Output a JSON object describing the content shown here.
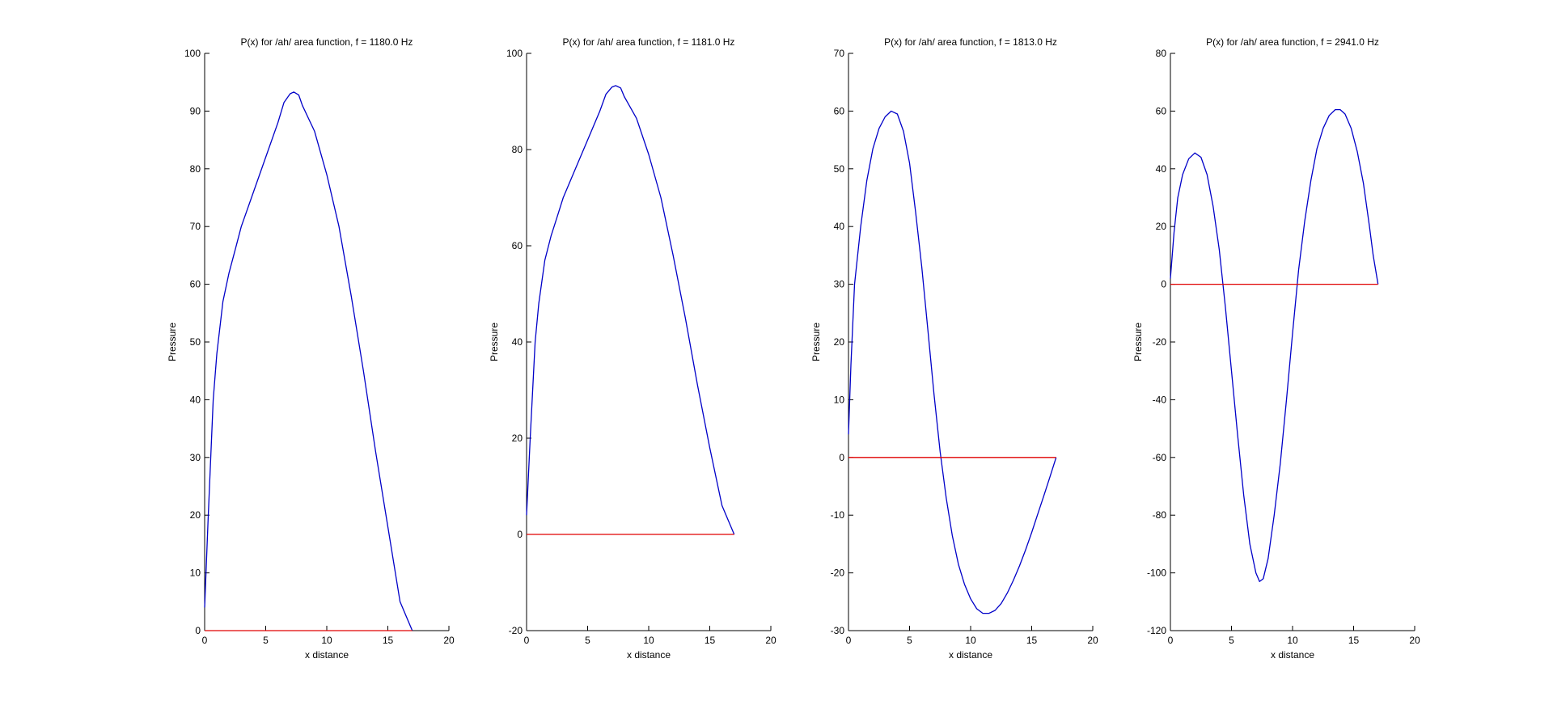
{
  "colors": {
    "curve": "#0000c8",
    "baseline": "#e00000",
    "axis": "#000000"
  },
  "chart_data": [
    {
      "type": "line",
      "title": "P(x) for /ah/ area function, f = 1180.0 Hz",
      "xlabel": "x distance",
      "ylabel": "Pressure",
      "xlim": [
        0,
        20
      ],
      "ylim": [
        0,
        100
      ],
      "xticks": [
        0,
        5,
        10,
        15,
        20
      ],
      "yticks": [
        0,
        10,
        20,
        30,
        40,
        50,
        60,
        70,
        80,
        90,
        100
      ],
      "grid": false,
      "series": [
        {
          "role": "pressure",
          "color": "#0000c8",
          "x": [
            0,
            0.3,
            0.7,
            1,
            1.5,
            2,
            2.5,
            3,
            4,
            5,
            6,
            6.5,
            7,
            7.3,
            7.7,
            8,
            9,
            10,
            11,
            12,
            13,
            14,
            15,
            16,
            17
          ],
          "y": [
            4,
            20,
            40,
            48,
            57,
            62,
            66,
            70,
            76,
            82,
            88,
            91.5,
            93,
            93.3,
            92.8,
            91,
            86.5,
            79,
            70,
            58,
            45,
            31,
            18,
            5,
            0
          ]
        },
        {
          "role": "baseline",
          "color": "#e00000",
          "x": [
            0,
            17
          ],
          "y": [
            0,
            0
          ]
        }
      ]
    },
    {
      "type": "line",
      "title": "P(x) for /ah/ area function, f = 1181.0 Hz",
      "xlabel": "x distance",
      "ylabel": "Pressure",
      "xlim": [
        0,
        20
      ],
      "ylim": [
        -20,
        100
      ],
      "xticks": [
        0,
        5,
        10,
        15,
        20
      ],
      "yticks": [
        -20,
        0,
        20,
        40,
        60,
        80,
        100
      ],
      "grid": false,
      "series": [
        {
          "role": "pressure",
          "color": "#0000c8",
          "x": [
            0,
            0.3,
            0.7,
            1,
            1.5,
            2,
            2.5,
            3,
            4,
            5,
            6,
            6.5,
            7,
            7.3,
            7.7,
            8,
            9,
            10,
            11,
            12,
            13,
            14,
            15,
            16,
            17
          ],
          "y": [
            4,
            20,
            40,
            48,
            57,
            62,
            66,
            70,
            76,
            82,
            88,
            91.5,
            93,
            93.3,
            92.8,
            91,
            86.5,
            79,
            70,
            58,
            45,
            31,
            18,
            6,
            0
          ]
        },
        {
          "role": "baseline",
          "color": "#e00000",
          "x": [
            0,
            17
          ],
          "y": [
            0,
            0
          ]
        }
      ]
    },
    {
      "type": "line",
      "title": "P(x) for /ah/ area function, f = 1813.0 Hz",
      "xlabel": "x distance",
      "ylabel": "Pressure",
      "xlim": [
        0,
        20
      ],
      "ylim": [
        -30,
        70
      ],
      "xticks": [
        0,
        5,
        10,
        15,
        20
      ],
      "yticks": [
        -30,
        -20,
        -10,
        0,
        10,
        20,
        30,
        40,
        50,
        60,
        70
      ],
      "grid": false,
      "series": [
        {
          "role": "pressure",
          "color": "#0000c8",
          "x": [
            0,
            0.2,
            0.5,
            1,
            1.5,
            2,
            2.5,
            3,
            3.5,
            4,
            4.5,
            5,
            5.5,
            6,
            6.5,
            7,
            7.5,
            8,
            8.5,
            9,
            9.5,
            10,
            10.5,
            11,
            11.5,
            12,
            12.5,
            13,
            13.5,
            14,
            14.5,
            15,
            15.5,
            16,
            16.5,
            17
          ],
          "y": [
            4,
            16,
            30,
            40,
            48,
            53.5,
            57,
            59,
            60,
            59.5,
            56.5,
            51,
            42.5,
            33,
            22,
            11,
            1,
            -7,
            -13.5,
            -18.5,
            -22,
            -24.5,
            -26.2,
            -27,
            -27,
            -26.5,
            -25.3,
            -23.5,
            -21.3,
            -18.8,
            -16,
            -13,
            -9.8,
            -6.6,
            -3.3,
            0
          ]
        },
        {
          "role": "baseline",
          "color": "#e00000",
          "x": [
            0,
            17
          ],
          "y": [
            0,
            0
          ]
        }
      ]
    },
    {
      "type": "line",
      "title": "P(x) for /ah/ area function, f = 2941.0 Hz",
      "xlabel": "x distance",
      "ylabel": "Pressure",
      "xlim": [
        0,
        20
      ],
      "ylim": [
        -120,
        80
      ],
      "xticks": [
        0,
        5,
        10,
        15,
        20
      ],
      "yticks": [
        -120,
        -100,
        -80,
        -60,
        -40,
        -20,
        0,
        20,
        40,
        60,
        80
      ],
      "grid": false,
      "series": [
        {
          "role": "pressure",
          "color": "#0000c8",
          "x": [
            0,
            0.3,
            0.6,
            1,
            1.5,
            2,
            2.5,
            3,
            3.5,
            4,
            4.5,
            5,
            5.5,
            6,
            6.5,
            7,
            7.3,
            7.6,
            8,
            8.5,
            9,
            9.5,
            10,
            10.5,
            11,
            11.5,
            12,
            12.5,
            13,
            13.5,
            13.9,
            14.3,
            14.8,
            15.3,
            15.8,
            16.3,
            16.6,
            17
          ],
          "y": [
            2,
            18,
            30,
            38,
            43.5,
            45.5,
            44,
            38,
            27,
            12,
            -8,
            -30,
            -52,
            -73,
            -90,
            -100,
            -103,
            -102,
            -95,
            -80,
            -62,
            -40,
            -17,
            5,
            22,
            36,
            47,
            54,
            58.5,
            60.5,
            60.5,
            59,
            54,
            46,
            35,
            20,
            10,
            0
          ]
        },
        {
          "role": "baseline",
          "color": "#e00000",
          "x": [
            0,
            17
          ],
          "y": [
            0,
            0
          ]
        }
      ]
    }
  ]
}
